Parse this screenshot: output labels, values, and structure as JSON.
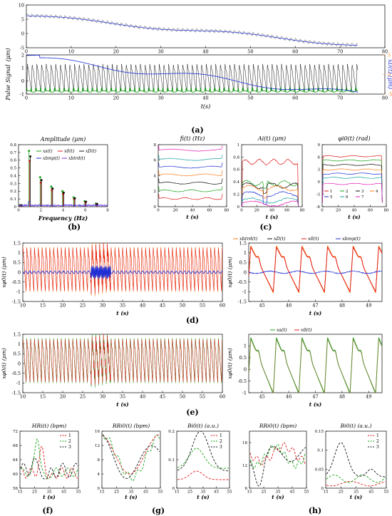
{
  "figure": {
    "panel_labels": [
      "(a)",
      "(b)",
      "(c)",
      "(d)",
      "(e)",
      "(f)",
      "(g)",
      "(h)"
    ],
    "colors": {
      "blue": "#1f2fd6",
      "red": "#e01818",
      "green": "#1aa31a",
      "black": "#111111",
      "orange": "#ff7a1a",
      "teal": "#18a3a0",
      "magenta": "#e61fb8",
      "purple": "#8a2be2",
      "gray_trace": "#7f7f7f"
    }
  },
  "chart_data": [
    {
      "id": "a-top",
      "type": "line",
      "ylabel": "",
      "xlim": [
        0,
        80
      ],
      "ylim": [
        -5,
        10
      ],
      "xticks": [
        "0",
        "10",
        "20",
        "30",
        "40",
        "50",
        "60",
        "70",
        "80"
      ],
      "yticks": [
        "-5",
        "0",
        "5",
        "10"
      ],
      "xlabel": "t(s)",
      "series": [
        {
          "color": "#7f7f7f",
          "description": "raw sawtooth pulse signal, drift from ~6 to ~-4"
        },
        {
          "color": "#1f2fd6",
          "description": "baseline drift"
        }
      ]
    },
    {
      "id": "a-bottom",
      "type": "line",
      "ylabel_left": "Pulse Signal  (μm)",
      "ylabel_right": "xD(t) (μm)",
      "xlabel": "t(s)",
      "xlim": [
        0,
        80
      ],
      "ylim_left": [
        -1,
        2
      ],
      "ylim_right": [
        -5,
        5
      ],
      "xticks": [
        "0",
        "10",
        "20",
        "30",
        "40",
        "50",
        "60",
        "70",
        "80"
      ],
      "yticks_left": [
        "-1",
        "0",
        "1",
        "2"
      ],
      "yticks_right": [
        "-5",
        "0",
        "5"
      ]
    },
    {
      "id": "b",
      "type": "bar",
      "title": "Amplitude (μm)",
      "xlabel": "Frequency (Hz)",
      "xlim": [
        0,
        8
      ],
      "ylim": [
        0,
        0.8
      ],
      "xticks": [
        "0",
        "2",
        "4",
        "6",
        "8"
      ],
      "yticks": [
        "0",
        "0.1",
        "0.2",
        "0.3",
        "0.4",
        "0.5",
        "0.6",
        "0.7",
        "0.8"
      ],
      "legend": [
        "xs(t)",
        "x0(t)",
        "xD(t)",
        "xbmp(t)",
        "xbtrd(t)"
      ],
      "stems": [
        {
          "f": 0.2,
          "a": 0.02
        },
        {
          "f": 1.0,
          "a": 0.72
        },
        {
          "f": 2.0,
          "a": 0.38
        },
        {
          "f": 3.0,
          "a": 0.26
        },
        {
          "f": 4.0,
          "a": 0.2
        },
        {
          "f": 5.0,
          "a": 0.12
        },
        {
          "f": 6.0,
          "a": 0.07
        },
        {
          "f": 7.0,
          "a": 0.04
        }
      ]
    },
    {
      "id": "c1",
      "type": "line",
      "title": "fi(t) (Hz)",
      "xlabel": "t (s)",
      "xlim": [
        0,
        80
      ],
      "ylim": [
        0,
        8
      ],
      "xticks": [
        "0",
        "20",
        "40",
        "60",
        "80"
      ],
      "yticks": [
        "0",
        "2",
        "4",
        "6",
        "8"
      ],
      "levels": [
        1.05,
        2.05,
        3.05,
        4.1,
        5.1,
        6.1,
        7.3
      ]
    },
    {
      "id": "c2",
      "type": "line",
      "title": "Ai(t) (μm)",
      "xlabel": "t (s)",
      "xlim": [
        0,
        80
      ],
      "ylim": [
        0,
        1
      ],
      "xticks": [
        "0",
        "20",
        "40",
        "60",
        "80"
      ],
      "yticks": [
        "0",
        "0.2",
        "0.4",
        "0.6",
        "0.8",
        "1"
      ],
      "levels": [
        0.72,
        0.38,
        0.34,
        0.3,
        0.2,
        0.1,
        0.05
      ]
    },
    {
      "id": "c3",
      "type": "line",
      "title": "φi0(t) (rad)",
      "xlabel": "t (s)",
      "xlim": [
        0,
        80
      ],
      "ylim": [
        -6,
        9
      ],
      "xticks": [
        "0",
        "20",
        "40",
        "60",
        "80"
      ],
      "yticks": [
        "-6",
        "-3",
        "0",
        "3",
        "6",
        "9"
      ],
      "legend": [
        "1",
        "2",
        "3",
        "4",
        "5",
        "6",
        "7"
      ],
      "levels": [
        6.2,
        5.2,
        4.1,
        3.0,
        2.0,
        1.0,
        -0.5
      ]
    },
    {
      "id": "d-left",
      "type": "line",
      "ylabel": "xφ0(t) (μm)",
      "xlabel": "t (s)",
      "xlim": [
        10,
        60
      ],
      "ylim": [
        -1.5,
        1.5
      ],
      "xticks": [
        "10",
        "15",
        "20",
        "25",
        "30",
        "35",
        "40",
        "45",
        "50",
        "55",
        "60"
      ],
      "yticks": [
        "-1.5",
        "-1",
        "-0.5",
        "0",
        "0.5",
        "1",
        "1.5"
      ]
    },
    {
      "id": "d-right",
      "type": "line",
      "ylabel": "xφ0(t) (μm)",
      "xlabel": "t (s)",
      "xlim": [
        44.5,
        49.5
      ],
      "ylim": [
        -1.5,
        1.5
      ],
      "xticks": [
        "45",
        "46",
        "47",
        "48",
        "49"
      ],
      "yticks": [
        "-1.5",
        "-1",
        "-0.5",
        "0",
        "0.5",
        "1",
        "1.5"
      ],
      "legend": [
        "xbtrd(t)",
        "xD(t)",
        "x0(t)",
        "xbmp(t)"
      ]
    },
    {
      "id": "e-left",
      "type": "line",
      "ylabel": "xφ0(t) (μm)",
      "xlabel": "t (s)",
      "xlim": [
        10,
        60
      ],
      "ylim": [
        -1.5,
        1.5
      ],
      "xticks": [
        "10",
        "15",
        "20",
        "25",
        "30",
        "35",
        "40",
        "45",
        "50",
        "55",
        "60"
      ],
      "yticks": [
        "-1.5",
        "-1",
        "-0.5",
        "0",
        "0.5",
        "1",
        "1.5"
      ]
    },
    {
      "id": "e-right",
      "type": "line",
      "ylabel": "xφ0(t) (μm)",
      "xlabel": "t (s)",
      "xlim": [
        44.5,
        49.5
      ],
      "ylim": [
        -1,
        1.5
      ],
      "xticks": [
        "45",
        "46",
        "47",
        "48",
        "49"
      ],
      "yticks": [
        "-1",
        "-0.5",
        "0",
        "0.5",
        "1"
      ],
      "legend": [
        "xs(t)",
        "x0(t)"
      ]
    },
    {
      "id": "f",
      "type": "line",
      "title": "HRi(t) (bpm)",
      "xlabel": "t (s)",
      "xlim": [
        15,
        55
      ],
      "ylim": [
        56,
        72
      ],
      "xticks": [
        "15",
        "25",
        "35",
        "45",
        "55"
      ],
      "yticks": [
        "56",
        "60",
        "64",
        "68",
        "72"
      ],
      "legend": [
        "1",
        "2",
        "3"
      ]
    },
    {
      "id": "g1",
      "type": "line",
      "title": "RRi0(t) (bpm)",
      "xlabel": "t (s)",
      "xlim": [
        15,
        55
      ],
      "ylim": [
        0,
        16
      ],
      "xticks": [
        "15",
        "25",
        "35",
        "45",
        "55"
      ],
      "yticks": [
        "0",
        "4",
        "8",
        "12",
        "16"
      ]
    },
    {
      "id": "g2",
      "type": "line",
      "title": "Bi0(t) (a.u.)",
      "xlabel": "t (s)",
      "xlim": [
        15,
        55
      ],
      "ylim": [
        0,
        0.2
      ],
      "xticks": [
        "15",
        "25",
        "35",
        "45",
        "55"
      ],
      "yticks": [
        "0",
        "0.1",
        "0.2"
      ],
      "legend": [
        "1",
        "2",
        "3"
      ]
    },
    {
      "id": "h1",
      "type": "line",
      "title": "RRi0(t) (bpm)",
      "xlabel": "t (s)",
      "xlim": [
        15,
        55
      ],
      "ylim": [
        6,
        21
      ],
      "xticks": [
        "15",
        "25",
        "35",
        "45",
        "55"
      ],
      "yticks": [
        "6",
        "12",
        "18"
      ]
    },
    {
      "id": "h2",
      "type": "line",
      "title": "Bi0(t) (a.u.)",
      "xlabel": "t (s)",
      "xlim": [
        15,
        55
      ],
      "ylim": [
        0,
        0.15
      ],
      "xticks": [
        "15",
        "25",
        "35",
        "45",
        "55"
      ],
      "yticks": [
        "0",
        "0.05",
        "0.1",
        "0.15"
      ],
      "legend": [
        "1",
        "2",
        "3"
      ]
    }
  ]
}
